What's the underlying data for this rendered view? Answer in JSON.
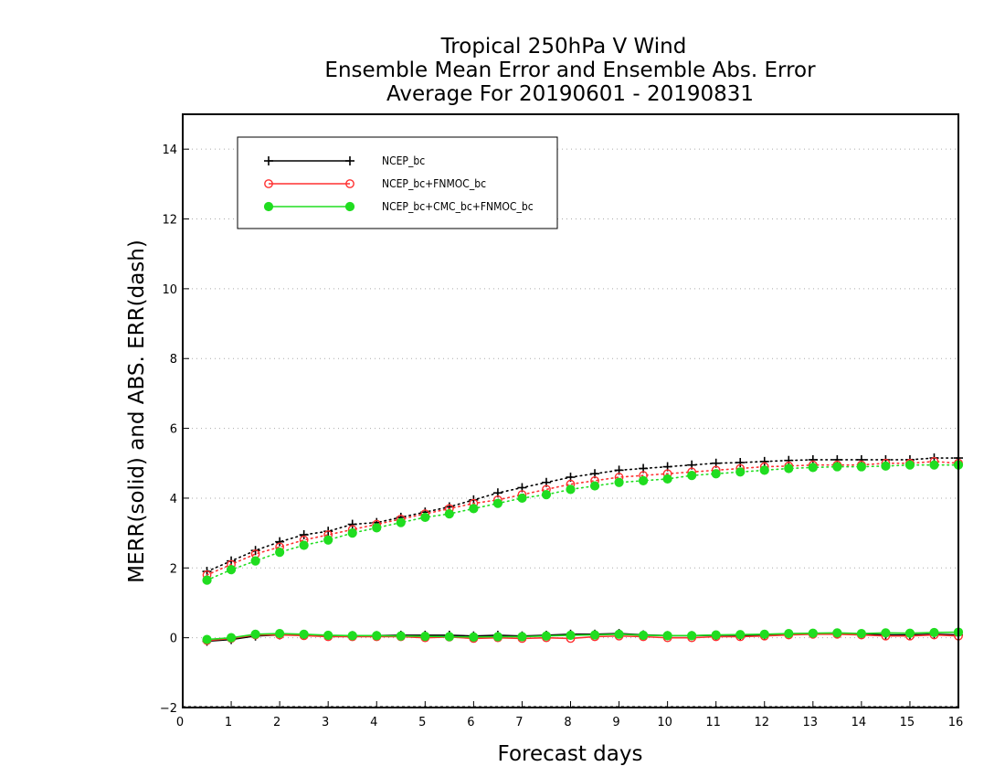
{
  "chart_data": {
    "type": "line",
    "title": [
      "Tropical 250hPa V Wind",
      "Ensemble Mean Error and Ensemble Abs. Error",
      "Average For 20190601 - 20190831"
    ],
    "xlabel": "Forecast days",
    "ylabel": "MERR(solid) and ABS. ERR(dash)",
    "xlim": [
      0,
      16
    ],
    "ylim": [
      -2,
      15
    ],
    "xticks": [
      0,
      1,
      2,
      3,
      4,
      5,
      6,
      7,
      8,
      9,
      10,
      11,
      12,
      13,
      14,
      15,
      16
    ],
    "yticks": [
      -2,
      0,
      2,
      4,
      6,
      8,
      10,
      12,
      14
    ],
    "grid": "horizontal dotted",
    "legend_position": "top-left",
    "x": [
      0.5,
      1,
      1.5,
      2,
      2.5,
      3,
      3.5,
      4,
      4.5,
      5,
      5.5,
      6,
      6.5,
      7,
      7.5,
      8,
      8.5,
      9,
      9.5,
      10,
      10.5,
      11,
      11.5,
      12,
      12.5,
      13,
      13.5,
      14,
      14.5,
      15,
      15.5,
      16
    ],
    "series": [
      {
        "name": "NCEP_bc",
        "color": "#000000",
        "marker": "plus",
        "merr": [
          -0.1,
          -0.05,
          0.05,
          0.08,
          0.08,
          0.06,
          0.06,
          0.06,
          0.07,
          0.07,
          0.07,
          0.05,
          0.07,
          0.05,
          0.07,
          0.1,
          0.1,
          0.12,
          0.08,
          0.06,
          0.06,
          0.07,
          0.07,
          0.07,
          0.1,
          0.12,
          0.12,
          0.1,
          0.08,
          0.08,
          0.1,
          0.08
        ],
        "abs_err": [
          1.9,
          2.2,
          2.5,
          2.75,
          2.95,
          3.05,
          3.25,
          3.3,
          3.45,
          3.6,
          3.75,
          3.95,
          4.15,
          4.3,
          4.45,
          4.6,
          4.7,
          4.8,
          4.85,
          4.9,
          4.95,
          5.0,
          5.02,
          5.05,
          5.08,
          5.1,
          5.1,
          5.1,
          5.1,
          5.1,
          5.15,
          5.15
        ]
      },
      {
        "name": "NCEP_bc+FNMOC_bc",
        "color": "#ff3030",
        "marker": "open-circle",
        "merr": [
          -0.08,
          -0.02,
          0.08,
          0.08,
          0.06,
          0.03,
          0.03,
          0.03,
          0.03,
          0.0,
          0.02,
          -0.02,
          0.0,
          -0.02,
          0.0,
          -0.02,
          0.03,
          0.05,
          0.03,
          0.0,
          0.0,
          0.03,
          0.03,
          0.05,
          0.08,
          0.1,
          0.1,
          0.08,
          0.05,
          0.05,
          0.08,
          0.05
        ],
        "abs_err": [
          1.8,
          2.1,
          2.4,
          2.6,
          2.8,
          2.95,
          3.1,
          3.25,
          3.4,
          3.55,
          3.7,
          3.85,
          3.95,
          4.1,
          4.25,
          4.4,
          4.5,
          4.6,
          4.65,
          4.7,
          4.75,
          4.8,
          4.85,
          4.9,
          4.92,
          4.95,
          4.95,
          4.95,
          5.0,
          5.0,
          5.05,
          5.0
        ]
      },
      {
        "name": "NCEP_bc+CMC_bc+FNMOC_bc",
        "color": "#20dd20",
        "marker": "filled-circle",
        "merr": [
          -0.05,
          0.0,
          0.1,
          0.12,
          0.1,
          0.07,
          0.06,
          0.06,
          0.05,
          0.04,
          0.03,
          0.02,
          0.03,
          0.03,
          0.05,
          0.07,
          0.08,
          0.1,
          0.07,
          0.06,
          0.06,
          0.08,
          0.09,
          0.1,
          0.12,
          0.13,
          0.14,
          0.12,
          0.14,
          0.13,
          0.15,
          0.16
        ],
        "abs_err": [
          1.65,
          1.95,
          2.2,
          2.45,
          2.65,
          2.8,
          3.0,
          3.15,
          3.3,
          3.45,
          3.55,
          3.7,
          3.85,
          4.0,
          4.1,
          4.25,
          4.35,
          4.45,
          4.5,
          4.55,
          4.65,
          4.7,
          4.75,
          4.8,
          4.85,
          4.88,
          4.9,
          4.9,
          4.92,
          4.95,
          4.95,
          4.95
        ]
      }
    ]
  }
}
